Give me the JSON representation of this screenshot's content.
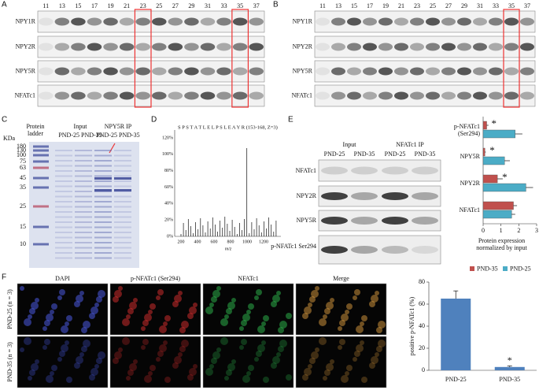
{
  "panels": {
    "A": {
      "label": "A",
      "lanes": [
        "11",
        "13",
        "15",
        "17",
        "19",
        "21",
        "23",
        "25",
        "27",
        "29",
        "31",
        "33",
        "35",
        "37"
      ],
      "rows": [
        "NPY1R",
        "NPY2R",
        "NPY5R",
        "NFATc1"
      ]
    },
    "B": {
      "label": "B",
      "lanes": [
        "11",
        "13",
        "15",
        "17",
        "19",
        "21",
        "23",
        "25",
        "27",
        "29",
        "31",
        "33",
        "35",
        "37"
      ],
      "rows": [
        "NPY1R",
        "NPY2R",
        "NPY5R",
        "NFATc1"
      ]
    },
    "C": {
      "label": "C",
      "kda": "KDa",
      "ladder_title": "Protein ladder",
      "input": "Input",
      "input_groups": "PND-25 PND-35",
      "ip": "NPY5R IP",
      "ip_groups": "PND-25 PND-35",
      "markers": [
        "180",
        "130",
        "100",
        "75",
        "63",
        "45",
        "35",
        "25",
        "15",
        "10"
      ]
    },
    "D": {
      "label": "D",
      "sequence": "S P S T A T L E L P S L E A Y R (153-168, Z=3)",
      "yticks": [
        "120%",
        "100%",
        "80%",
        "60%",
        "40%",
        "20%",
        "0%"
      ],
      "xticks": [
        "200",
        "400",
        "600",
        "800",
        "1000",
        "1200"
      ],
      "xlabel": "m/z"
    },
    "E": {
      "label": "E",
      "input": "Input",
      "ip": "NFATc1 IP",
      "groups": [
        "PND-25",
        "PND-35",
        "PND-25",
        "PND-35"
      ],
      "rows": [
        "NFATc1",
        "NPY2R",
        "NPY5R",
        "p-NFATc1 Ser294"
      ]
    },
    "F": {
      "label": "F",
      "columns": [
        "DAPI",
        "p-NFATc1 (Ser294)",
        "NFATc1",
        "Merge"
      ],
      "rows": [
        "PND-25 (n = 3)",
        "PND-35 (n = 3)"
      ]
    }
  },
  "chart_data": [
    {
      "type": "hbar",
      "categories": [
        "p-NFATc1 (Ser294)",
        "NPY5R",
        "NPY2R",
        "NFATc1"
      ],
      "series": [
        {
          "name": "PND-35",
          "color": "#c0504d",
          "values": [
            0.2,
            0.1,
            0.8,
            1.7
          ],
          "errors": [
            0.1,
            0.05,
            0.3,
            0.2
          ]
        },
        {
          "name": "PND-25",
          "color": "#4bacc6",
          "values": [
            1.8,
            1.2,
            2.4,
            1.6
          ],
          "errors": [
            0.4,
            0.3,
            0.4,
            0.2
          ]
        }
      ],
      "xlim": [
        0,
        3
      ],
      "xticks": [
        0,
        1,
        2,
        3
      ],
      "xlabel": "Protein expression normalized by input",
      "annotations": [
        "*",
        "*",
        "*"
      ],
      "legend": "bottom"
    },
    {
      "type": "bar",
      "categories": [
        "PND-25",
        "PND-35"
      ],
      "values": [
        65,
        3
      ],
      "errors": [
        7,
        1
      ],
      "color": "#4f81bd",
      "ylim": [
        0,
        80
      ],
      "yticks": [
        0,
        20,
        40,
        60,
        80
      ],
      "ylabel": "positive p-NFATc1 (%)",
      "annotations": [
        "*"
      ]
    }
  ]
}
